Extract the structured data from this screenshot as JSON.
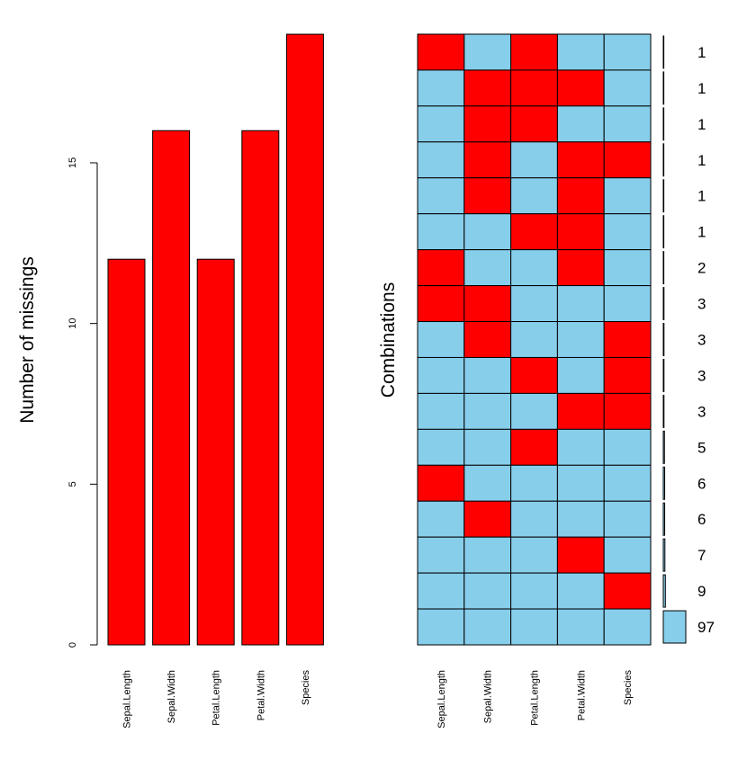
{
  "chart_data": [
    {
      "type": "bar",
      "ylabel": "Number of missings",
      "xlabel": "",
      "categories": [
        "Sepal.Length",
        "Sepal.Width",
        "Petal.Length",
        "Petal.Width",
        "Species"
      ],
      "values": [
        12,
        16,
        12,
        16,
        19
      ],
      "ylim": [
        0,
        19
      ],
      "yticks": [
        0,
        5,
        10,
        15
      ],
      "ytick_labels": [
        "0",
        "5",
        "10",
        "15"
      ],
      "bar_color": "#FF0000",
      "grid": false
    },
    {
      "type": "heatmap",
      "ylabel": "Combinations",
      "categories": [
        "Sepal.Length",
        "Sepal.Width",
        "Petal.Length",
        "Petal.Width",
        "Species"
      ],
      "missing_color": "#FF0000",
      "present_color": "#87CEEB",
      "combinations": [
        {
          "pattern": [
            1,
            0,
            1,
            0,
            0
          ],
          "count": 1,
          "label": "1"
        },
        {
          "pattern": [
            0,
            1,
            1,
            1,
            0
          ],
          "count": 1,
          "label": "1"
        },
        {
          "pattern": [
            0,
            1,
            1,
            0,
            0
          ],
          "count": 1,
          "label": "1"
        },
        {
          "pattern": [
            0,
            1,
            0,
            1,
            1
          ],
          "count": 1,
          "label": "1"
        },
        {
          "pattern": [
            0,
            1,
            0,
            1,
            0
          ],
          "count": 1,
          "label": "1"
        },
        {
          "pattern": [
            0,
            0,
            1,
            1,
            0
          ],
          "count": 1,
          "label": "1"
        },
        {
          "pattern": [
            1,
            0,
            0,
            1,
            0
          ],
          "count": 2,
          "label": "2"
        },
        {
          "pattern": [
            1,
            1,
            0,
            0,
            0
          ],
          "count": 3,
          "label": "3"
        },
        {
          "pattern": [
            0,
            1,
            0,
            0,
            1
          ],
          "count": 3,
          "label": "3"
        },
        {
          "pattern": [
            0,
            0,
            1,
            0,
            1
          ],
          "count": 3,
          "label": "3"
        },
        {
          "pattern": [
            0,
            0,
            0,
            1,
            1
          ],
          "count": 3,
          "label": "3"
        },
        {
          "pattern": [
            0,
            0,
            1,
            0,
            0
          ],
          "count": 5,
          "label": "5"
        },
        {
          "pattern": [
            1,
            0,
            0,
            0,
            0
          ],
          "count": 6,
          "label": "6"
        },
        {
          "pattern": [
            0,
            1,
            0,
            0,
            0
          ],
          "count": 6,
          "label": "6"
        },
        {
          "pattern": [
            0,
            0,
            0,
            1,
            0
          ],
          "count": 7,
          "label": "7"
        },
        {
          "pattern": [
            0,
            0,
            0,
            0,
            1
          ],
          "count": 9,
          "label": "9"
        },
        {
          "pattern": [
            0,
            0,
            0,
            0,
            0
          ],
          "count": 97,
          "label": "97"
        }
      ]
    }
  ]
}
